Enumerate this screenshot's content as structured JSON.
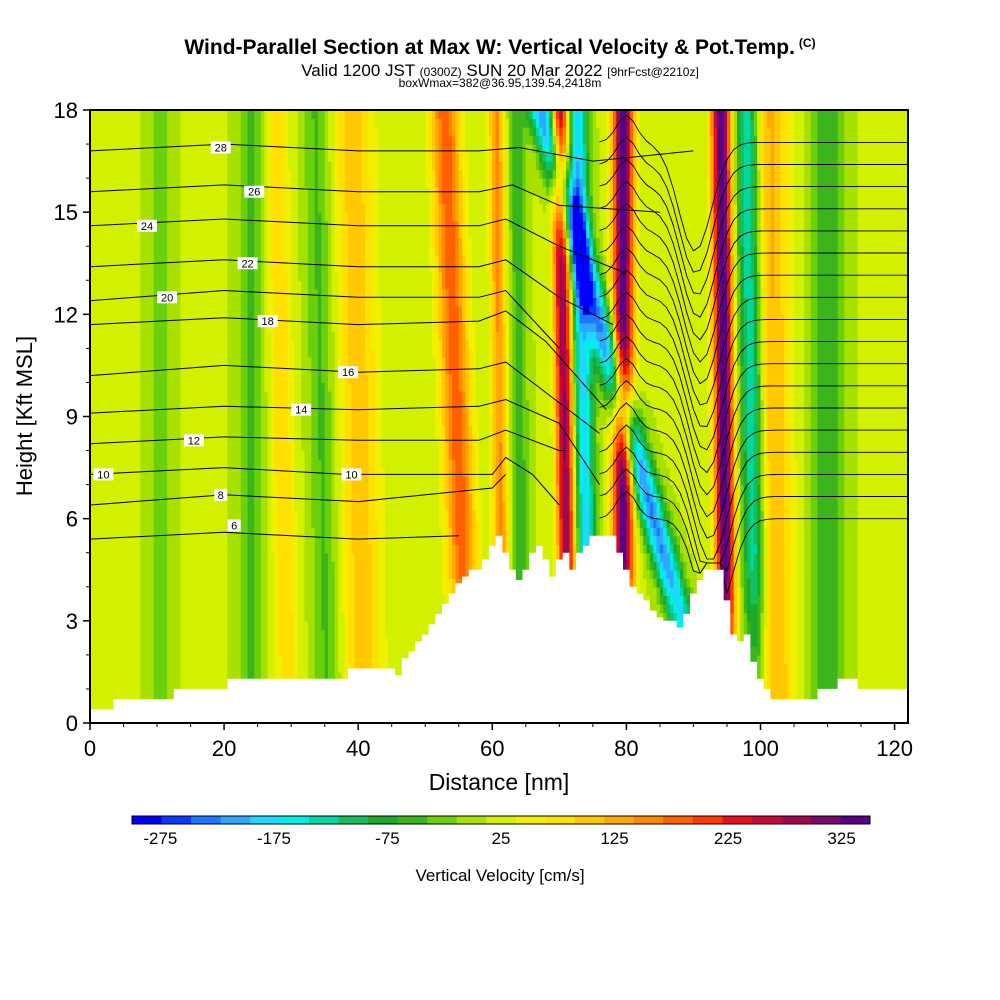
{
  "chart_data": {
    "type": "heatmap",
    "title": "Wind-Parallel Section at Max W: Vertical Velocity & Pot.Temp.",
    "title_unit": "(C)",
    "subtitle": {
      "valid_prefix": "Valid 1200 JST",
      "utc": "(0300Z)",
      "date": "SUN 20 Mar 2022",
      "forecast": "[9hrFcst@2210z]"
    },
    "box_info": "boxWmax=382@36.95,139.54,2418m",
    "xlabel": "Distance [nm]",
    "ylabel": "Height [Kft MSL]",
    "xlim": [
      0,
      122
    ],
    "ylim": [
      0,
      18
    ],
    "x_ticks": [
      "0",
      "20",
      "40",
      "60",
      "80",
      "100",
      "120"
    ],
    "y_ticks": [
      "0",
      "3",
      "6",
      "9",
      "12",
      "15",
      "18"
    ],
    "colorbar": {
      "label": "Vertical Velocity [cm/s]",
      "tick_labels": [
        "-275",
        "-175",
        "-75",
        "25",
        "125",
        "225",
        "325"
      ],
      "colors": [
        "#0000ff",
        "#0a3cff",
        "#1e78ff",
        "#2ea8ff",
        "#1ed8ff",
        "#00f0e6",
        "#00d8a0",
        "#12c060",
        "#1caa2a",
        "#3cb41c",
        "#6ad00a",
        "#a8e000",
        "#d2f000",
        "#f0f000",
        "#ffe000",
        "#ffc800",
        "#ffa800",
        "#ff8800",
        "#ff6000",
        "#ff3800",
        "#e81018",
        "#c80838",
        "#a00850",
        "#780870",
        "#5a0088"
      ],
      "min": -300,
      "max": 350
    },
    "terrain_height_kft": [
      0.4,
      0.4,
      0.4,
      0.4,
      0.7,
      0.7,
      0.7,
      0.7,
      0.7,
      0.7,
      0.7,
      0.7,
      0.7,
      1.0,
      1.0,
      1.0,
      1.0,
      1.0,
      1.0,
      1.0,
      1.0,
      1.3,
      1.3,
      1.3,
      1.3,
      1.3,
      1.3,
      1.3,
      1.3,
      1.3,
      1.3,
      1.3,
      1.3,
      1.3,
      1.3,
      1.3,
      1.3,
      1.3,
      1.3,
      1.6,
      1.6,
      1.6,
      1.6,
      1.6,
      1.6,
      1.6,
      1.4,
      1.9,
      2.1,
      2.4,
      2.6,
      2.9,
      3.2,
      3.5,
      3.8,
      4.1,
      4.3,
      4.5,
      4.5,
      4.8,
      5.2,
      5.5,
      5.0,
      4.5,
      4.2,
      4.5,
      5.0,
      5.2,
      4.8,
      4.3,
      4.8,
      5.0,
      4.5,
      5.0,
      5.2,
      5.5,
      5.5,
      5.5,
      5.5,
      5.0,
      4.5,
      4.0,
      3.8,
      3.6,
      3.3,
      3.1,
      3.0,
      3.0,
      2.8,
      3.2,
      3.8,
      4.2,
      4.5,
      4.5,
      4.5,
      3.6,
      2.6,
      2.4,
      2.6,
      1.8,
      1.3,
      1.0,
      0.7,
      0.7,
      0.7,
      0.7,
      0.7,
      0.7,
      0.7,
      1.0,
      1.0,
      1.0,
      1.3,
      1.3,
      1.3,
      1.0,
      1.0,
      1.0,
      1.0,
      1.0,
      1.0,
      1.0,
      1.0
    ],
    "w_bands": [
      {
        "x_base": 61.5,
        "slope_nm_per_kft": -0.05,
        "w_cms": 130,
        "width_nm": 1.2
      },
      {
        "x_base": 64.5,
        "slope_nm_per_kft": -0.05,
        "w_cms": -70,
        "width_nm": 1.3
      },
      {
        "x_base": 71.5,
        "slope_nm_per_kft": -0.08,
        "w_cms": 290,
        "width_nm": 1.3
      },
      {
        "x_base": 74.5,
        "slope_nm_per_kft": -0.1,
        "w_cms": -200,
        "width_nm": 1.5
      },
      {
        "x_base": 79.5,
        "slope_nm_per_kft": 0.0,
        "w_cms": 330,
        "width_nm": 1.5
      },
      {
        "x_base": 92.5,
        "slope_nm_per_kft": -1.4,
        "w_cms": -240,
        "width_nm": 2.0
      },
      {
        "x_base": 95.0,
        "slope_nm_per_kft": -0.05,
        "w_cms": 340,
        "width_nm": 1.4
      },
      {
        "x_base": 99.5,
        "slope_nm_per_kft": -0.08,
        "w_cms": -190,
        "width_nm": 1.8
      },
      {
        "x_base": 102.0,
        "slope_nm_per_kft": -0.05,
        "w_cms": 110,
        "width_nm": 3.0
      },
      {
        "x_base": 110.0,
        "slope_nm_per_kft": 0.0,
        "w_cms": -80,
        "width_nm": 2.5
      },
      {
        "x_base": 56.5,
        "slope_nm_per_kft": -0.2,
        "w_cms": 170,
        "width_nm": 2.2
      },
      {
        "x_base": 41.0,
        "slope_nm_per_kft": -0.1,
        "w_cms": 90,
        "width_nm": 3.0
      },
      {
        "x_base": 35.5,
        "slope_nm_per_kft": -0.1,
        "w_cms": -60,
        "width_nm": 2.0
      },
      {
        "x_base": 29.5,
        "slope_nm_per_kft": -0.1,
        "w_cms": 70,
        "width_nm": 1.8
      },
      {
        "x_base": 24.0,
        "slope_nm_per_kft": 0.0,
        "w_cms": -60,
        "width_nm": 2.0
      },
      {
        "x_base": 10.5,
        "slope_nm_per_kft": 0.0,
        "w_cms": -40,
        "width_nm": 2.0
      }
    ],
    "isentropes": [
      {
        "label": "6",
        "label_at": [
          21.5,
          5.8
        ],
        "points": [
          [
            0,
            5.4
          ],
          [
            20,
            5.6
          ],
          [
            40,
            5.4
          ],
          [
            55,
            5.5
          ]
        ]
      },
      {
        "label": "8",
        "label_at": [
          19.5,
          6.7
        ],
        "points": [
          [
            0,
            6.4
          ],
          [
            20,
            6.7
          ],
          [
            40,
            6.5
          ],
          [
            60,
            6.9
          ],
          [
            62,
            7.3
          ]
        ]
      },
      {
        "label": "10",
        "label_at": [
          2.0,
          7.3
        ],
        "points": [
          [
            0,
            7.3
          ],
          [
            20,
            7.5
          ],
          [
            38,
            7.3
          ],
          [
            60,
            7.3
          ],
          [
            62,
            7.8
          ],
          [
            66,
            7.3
          ],
          [
            70,
            6.4
          ]
        ]
      },
      {
        "label": "10",
        "label_at": [
          39.0,
          7.3
        ],
        "points": [
          [
            0,
            7.3
          ],
          [
            20,
            7.5
          ],
          [
            38,
            7.3
          ],
          [
            60,
            7.3
          ],
          [
            62,
            7.8
          ],
          [
            66,
            7.3
          ],
          [
            70,
            6.4
          ]
        ]
      },
      {
        "label": "12",
        "label_at": [
          15.5,
          8.3
        ],
        "points": [
          [
            0,
            8.2
          ],
          [
            20,
            8.4
          ],
          [
            40,
            8.3
          ],
          [
            58,
            8.3
          ],
          [
            62,
            8.6
          ],
          [
            70,
            8.0
          ],
          [
            71,
            8.0
          ]
        ]
      },
      {
        "label": "14",
        "label_at": [
          31.5,
          9.2
        ],
        "points": [
          [
            0,
            9.1
          ],
          [
            20,
            9.3
          ],
          [
            40,
            9.2
          ],
          [
            58,
            9.3
          ],
          [
            62,
            9.5
          ],
          [
            70,
            8.8
          ],
          [
            76,
            7.0
          ]
        ]
      },
      {
        "label": "16",
        "label_at": [
          38.5,
          10.3
        ],
        "points": [
          [
            0,
            10.2
          ],
          [
            20,
            10.5
          ],
          [
            40,
            10.3
          ],
          [
            58,
            10.4
          ],
          [
            62,
            10.6
          ],
          [
            66,
            10.0
          ],
          [
            76,
            8.5
          ]
        ]
      },
      {
        "label": "18",
        "label_at": [
          26.5,
          11.8
        ],
        "points": [
          [
            0,
            11.7
          ],
          [
            20,
            11.9
          ],
          [
            40,
            11.7
          ],
          [
            58,
            11.8
          ],
          [
            62,
            12.1
          ],
          [
            68,
            11.2
          ],
          [
            77,
            9.2
          ]
        ]
      },
      {
        "label": "20",
        "label_at": [
          11.5,
          12.5
        ],
        "points": [
          [
            0,
            12.4
          ],
          [
            20,
            12.7
          ],
          [
            40,
            12.5
          ],
          [
            58,
            12.5
          ],
          [
            62,
            12.7
          ],
          [
            70,
            11.0
          ]
        ]
      },
      {
        "label": "22",
        "label_at": [
          23.5,
          13.5
        ],
        "points": [
          [
            0,
            13.4
          ],
          [
            20,
            13.6
          ],
          [
            40,
            13.4
          ],
          [
            58,
            13.4
          ],
          [
            62,
            13.6
          ],
          [
            70,
            12.5
          ],
          [
            78,
            11.7
          ]
        ]
      },
      {
        "label": "24",
        "label_at": [
          8.5,
          14.6
        ],
        "points": [
          [
            0,
            14.6
          ],
          [
            20,
            14.8
          ],
          [
            40,
            14.6
          ],
          [
            58,
            14.6
          ],
          [
            62,
            14.8
          ],
          [
            70,
            14.0
          ],
          [
            80,
            13.2
          ]
        ]
      },
      {
        "label": "26",
        "label_at": [
          24.5,
          15.6
        ],
        "points": [
          [
            0,
            15.6
          ],
          [
            20,
            15.8
          ],
          [
            40,
            15.6
          ],
          [
            58,
            15.6
          ],
          [
            63,
            15.8
          ],
          [
            70,
            15.2
          ],
          [
            85,
            15.0
          ]
        ]
      },
      {
        "label": "28",
        "label_at": [
          19.5,
          16.9
        ],
        "points": [
          [
            0,
            16.8
          ],
          [
            20,
            17.0
          ],
          [
            40,
            16.8
          ],
          [
            58,
            16.8
          ],
          [
            64,
            16.9
          ],
          [
            75,
            16.5
          ],
          [
            90,
            16.8
          ]
        ]
      }
    ]
  }
}
